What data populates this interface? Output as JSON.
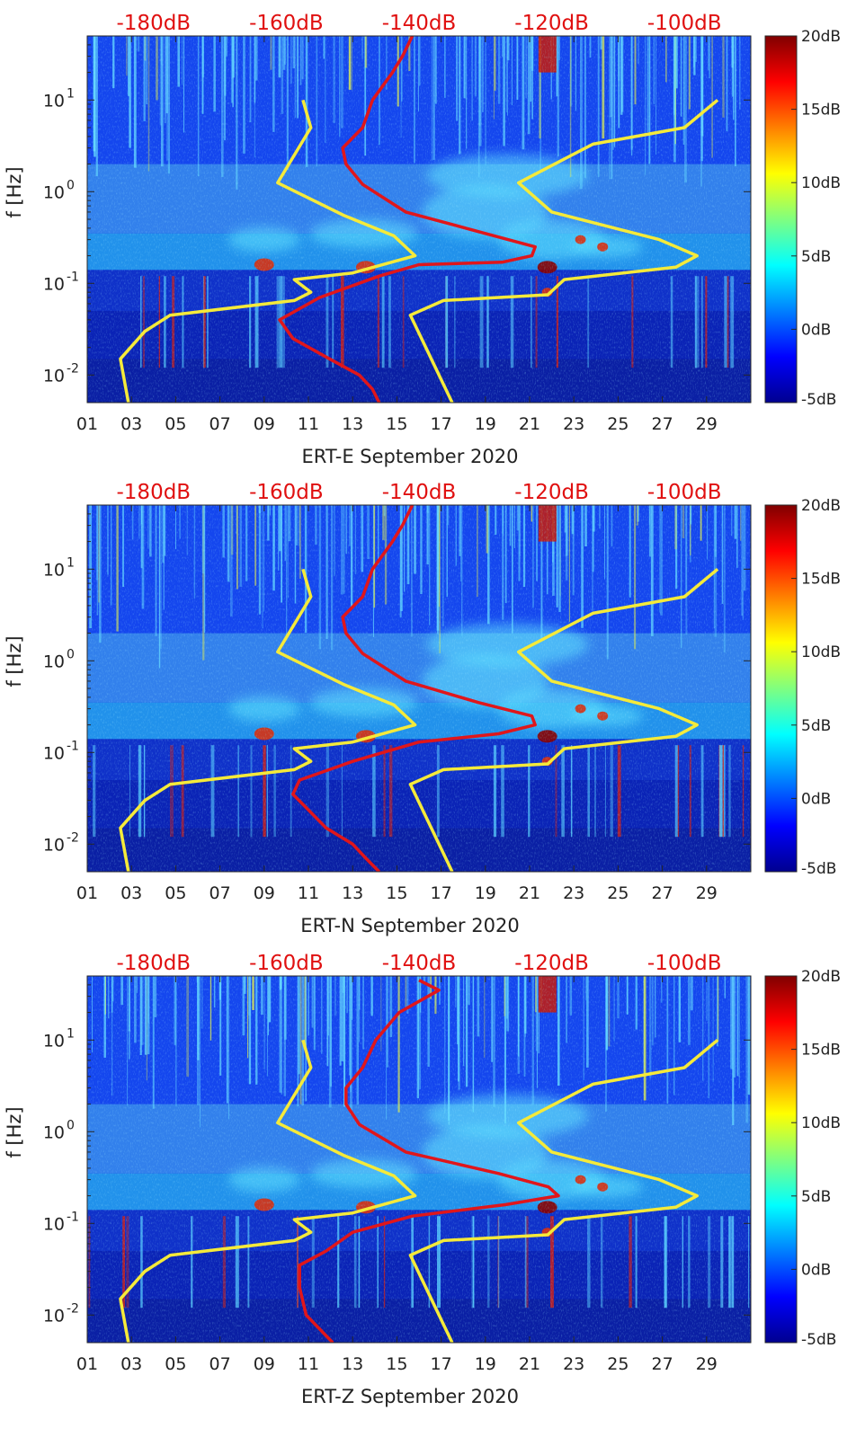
{
  "colors": {
    "noise_models": "#f5ea3a",
    "station_curve": "#e0161b",
    "top_labels": "#e01010",
    "axis_text": "#222222"
  },
  "chart_data": [
    {
      "type": "heatmap",
      "title": "ERT-E September 2020",
      "xlabel": "ERT-E September 2020",
      "ylabel": "f [Hz]",
      "x_ticks": [
        "01",
        "03",
        "05",
        "07",
        "09",
        "11",
        "13",
        "15",
        "17",
        "19",
        "21",
        "23",
        "25",
        "27",
        "29"
      ],
      "x_range_days": [
        1,
        31
      ],
      "y_scale": "log",
      "ylim_hz": [
        0.005,
        50
      ],
      "y_ticks": [
        {
          "value": 0.01,
          "base": "10",
          "exp": "-2"
        },
        {
          "value": 0.1,
          "base": "10",
          "exp": "-1"
        },
        {
          "value": 1,
          "base": "10",
          "exp": "0"
        },
        {
          "value": 10,
          "base": "10",
          "exp": "1"
        }
      ],
      "top_axis_labels": [
        "-180dB",
        "-160dB",
        "-140dB",
        "-120dB",
        "-100dB"
      ],
      "top_axis_range_db": [
        -190,
        -90
      ],
      "colorbar": {
        "range_db": [
          -5,
          20
        ],
        "tick_labels": [
          "20dB",
          "15dB",
          "10dB",
          "5dB",
          "0dB",
          "-5dB"
        ],
        "ticks_db": [
          20,
          15,
          10,
          5,
          0,
          -5
        ]
      },
      "noise_model_low": {
        "freq_hz": [
          10,
          5,
          1.25,
          0.55,
          0.33,
          0.2,
          0.13,
          0.11,
          0.08,
          0.065,
          0.045,
          0.03,
          0.015,
          0.005
        ],
        "level_db": [
          -157.5,
          -156.3,
          -161.3,
          -151.3,
          -143.8,
          -140.6,
          -150,
          -158.8,
          -156.3,
          -158.8,
          -177.5,
          -181.3,
          -185,
          -183.8
        ]
      },
      "noise_model_high": {
        "freq_hz": [
          0.005,
          0.045,
          0.065,
          0.075,
          0.11,
          0.15,
          0.2,
          0.3,
          0.6,
          1.25,
          3.3,
          5,
          10
        ],
        "level_db": [
          -135,
          -141.3,
          -136.3,
          -120.6,
          -118.1,
          -101.3,
          -98.1,
          -103.8,
          -120,
          -125,
          -113.8,
          -100,
          -95
        ]
      },
      "psd_curve": {
        "freq_hz": [
          50,
          30,
          20,
          10,
          5,
          3,
          2,
          1.2,
          0.6,
          0.35,
          0.25,
          0.2,
          0.17,
          0.16,
          0.12,
          0.07,
          0.04,
          0.025,
          0.015,
          0.01,
          0.007,
          0.005
        ],
        "level_db": [
          -141,
          -142.5,
          -144,
          -147,
          -148.5,
          -151.5,
          -151,
          -148.5,
          -142,
          -130,
          -122.5,
          -123,
          -127.5,
          -140,
          -146,
          -155,
          -161,
          -159,
          -153.5,
          -149,
          -147,
          -146
        ]
      }
    },
    {
      "type": "heatmap",
      "title": "ERT-N September 2020",
      "xlabel": "ERT-N September 2020",
      "ylabel": "f [Hz]",
      "x_ticks": [
        "01",
        "03",
        "05",
        "07",
        "09",
        "11",
        "13",
        "15",
        "17",
        "19",
        "21",
        "23",
        "25",
        "27",
        "29"
      ],
      "x_range_days": [
        1,
        31
      ],
      "y_scale": "log",
      "ylim_hz": [
        0.005,
        50
      ],
      "y_ticks": [
        {
          "value": 0.01,
          "base": "10",
          "exp": "-2"
        },
        {
          "value": 0.1,
          "base": "10",
          "exp": "-1"
        },
        {
          "value": 1,
          "base": "10",
          "exp": "0"
        },
        {
          "value": 10,
          "base": "10",
          "exp": "1"
        }
      ],
      "top_axis_labels": [
        "-180dB",
        "-160dB",
        "-140dB",
        "-120dB",
        "-100dB"
      ],
      "top_axis_range_db": [
        -190,
        -90
      ],
      "colorbar": {
        "range_db": [
          -5,
          20
        ],
        "tick_labels": [
          "20dB",
          "15dB",
          "10dB",
          "5dB",
          "0dB",
          "-5dB"
        ],
        "ticks_db": [
          20,
          15,
          10,
          5,
          0,
          -5
        ]
      },
      "noise_model_low": {
        "freq_hz": [
          10,
          5,
          1.25,
          0.55,
          0.33,
          0.2,
          0.13,
          0.11,
          0.08,
          0.065,
          0.045,
          0.03,
          0.015,
          0.005
        ],
        "level_db": [
          -157.5,
          -156.3,
          -161.3,
          -151.3,
          -143.8,
          -140.6,
          -150,
          -158.8,
          -156.3,
          -158.8,
          -177.5,
          -181.3,
          -185,
          -183.8
        ]
      },
      "noise_model_high": {
        "freq_hz": [
          0.005,
          0.045,
          0.065,
          0.075,
          0.11,
          0.15,
          0.2,
          0.3,
          0.6,
          1.25,
          3.3,
          5,
          10
        ],
        "level_db": [
          -135,
          -141.3,
          -136.3,
          -120.6,
          -118.1,
          -101.3,
          -98.1,
          -103.8,
          -120,
          -125,
          -113.8,
          -100,
          -95
        ]
      },
      "psd_curve": {
        "freq_hz": [
          50,
          30,
          20,
          10,
          5,
          3,
          2,
          1.2,
          0.6,
          0.35,
          0.25,
          0.2,
          0.16,
          0.13,
          0.08,
          0.05,
          0.035,
          0.025,
          0.015,
          0.01,
          0.007,
          0.005
        ],
        "level_db": [
          -141,
          -142.5,
          -144,
          -147,
          -148.5,
          -151.5,
          -151,
          -148.5,
          -142,
          -131,
          -123,
          -122.5,
          -128,
          -140,
          -150,
          -158,
          -159,
          -157,
          -154,
          -150,
          -148,
          -146
        ]
      }
    },
    {
      "type": "heatmap",
      "title": "ERT-Z September 2020",
      "xlabel": "ERT-Z September 2020",
      "ylabel": "f [Hz]",
      "x_ticks": [
        "01",
        "03",
        "05",
        "07",
        "09",
        "11",
        "13",
        "15",
        "17",
        "19",
        "21",
        "23",
        "25",
        "27",
        "29"
      ],
      "x_range_days": [
        1,
        31
      ],
      "y_scale": "log",
      "ylim_hz": [
        0.005,
        50
      ],
      "y_ticks": [
        {
          "value": 0.01,
          "base": "10",
          "exp": "-2"
        },
        {
          "value": 0.1,
          "base": "10",
          "exp": "-1"
        },
        {
          "value": 1,
          "base": "10",
          "exp": "0"
        },
        {
          "value": 10,
          "base": "10",
          "exp": "1"
        }
      ],
      "top_axis_labels": [
        "-180dB",
        "-160dB",
        "-140dB",
        "-120dB",
        "-100dB"
      ],
      "top_axis_range_db": [
        -190,
        -90
      ],
      "colorbar": {
        "range_db": [
          -5,
          20
        ],
        "tick_labels": [
          "20dB",
          "15dB",
          "10dB",
          "5dB",
          "0dB",
          "-5dB"
        ],
        "ticks_db": [
          20,
          15,
          10,
          5,
          0,
          -5
        ]
      },
      "noise_model_low": {
        "freq_hz": [
          10,
          5,
          1.25,
          0.55,
          0.33,
          0.2,
          0.13,
          0.11,
          0.08,
          0.065,
          0.045,
          0.03,
          0.015,
          0.005
        ],
        "level_db": [
          -157.5,
          -156.3,
          -161.3,
          -151.3,
          -143.8,
          -140.6,
          -150,
          -158.8,
          -156.3,
          -158.8,
          -177.5,
          -181.3,
          -185,
          -183.8
        ]
      },
      "noise_model_high": {
        "freq_hz": [
          0.005,
          0.045,
          0.065,
          0.075,
          0.11,
          0.15,
          0.2,
          0.3,
          0.6,
          1.25,
          3.3,
          5,
          10
        ],
        "level_db": [
          -135,
          -141.3,
          -136.3,
          -120.6,
          -118.1,
          -101.3,
          -98.1,
          -103.8,
          -120,
          -125,
          -113.8,
          -100,
          -95
        ]
      },
      "psd_curve": {
        "freq_hz": [
          45,
          35,
          20,
          10,
          5,
          3,
          2,
          1.2,
          0.6,
          0.35,
          0.25,
          0.2,
          0.16,
          0.12,
          0.08,
          0.05,
          0.035,
          0.02,
          0.01,
          0.005
        ],
        "level_db": [
          -140,
          -137,
          -143,
          -146.5,
          -148.5,
          -151,
          -151,
          -149,
          -142,
          -128,
          -120.5,
          -119,
          -127,
          -141,
          -150,
          -154,
          -158,
          -158,
          -157,
          -153
        ]
      }
    }
  ]
}
